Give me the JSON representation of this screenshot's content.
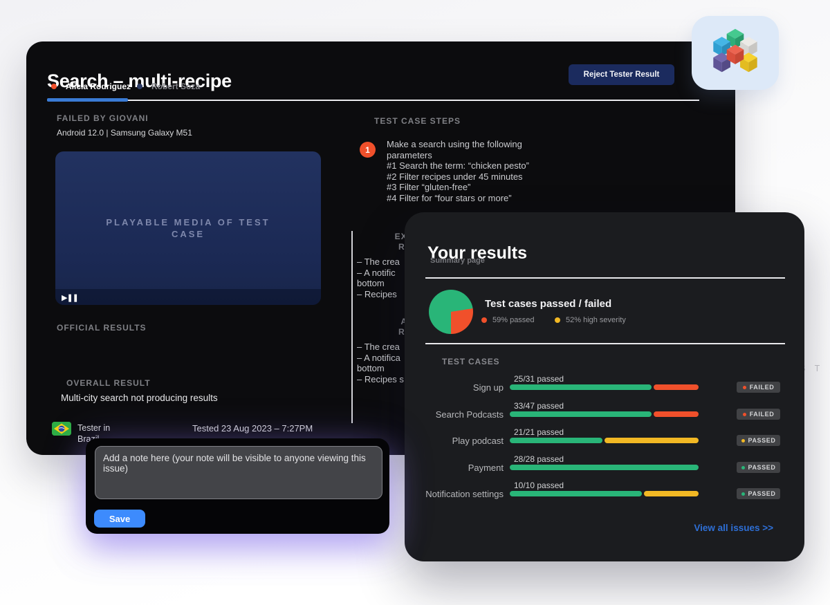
{
  "page": {
    "watermark": "S T"
  },
  "colors": {
    "accent_blue": "#3a7bd5",
    "save_blue": "#3d8bfd",
    "link_blue": "#2e6fd6",
    "green": "#29b578",
    "orange": "#f0502b",
    "yellow": "#f2b824",
    "tab_active_dot": "#f0502b",
    "tab_inactive_dot": "#2c3a63"
  },
  "main": {
    "title": "Search – multi-recipe",
    "reject_button": "Reject Tester Result",
    "tabs": [
      {
        "label": "Alicia Rodriguez",
        "active": true
      },
      {
        "label": "Robert Soza",
        "active": false
      }
    ],
    "failed_by_heading": "FAILED BY GIOVANI",
    "device": "Android 12.0 | Samsung Galaxy M51",
    "player": {
      "placeholder": "PLAYABLE MEDIA OF TEST CASE",
      "play_pause_glyph": "▶❚❚"
    },
    "official_results_heading": "OFFICIAL RESULTS",
    "overall_result_heading": "OVERALL RESULT",
    "overall_result_text": "Multi-city search not producing results",
    "tester_location": "Tester in Brazil",
    "tested_date": "Tested 23 Aug 2023 – 7:27PM",
    "steps": {
      "heading": "TEST CASE STEPS",
      "number": "1",
      "lines": [
        "Make a search using the following",
        "parameters",
        "#1 Search the term: “chicken pesto”",
        "#2 Filter recipes under 45 minutes",
        "#3 Filter “gluten-free”",
        "#4 Filter for “four stars or more”"
      ]
    },
    "expected": {
      "heading": "EXPECTED RESULTS",
      "lines": [
        "– The crea",
        "– A notific",
        "bottom",
        "– Recipes"
      ]
    },
    "actual": {
      "heading": "ACTUAL RESULTS",
      "lines": [
        "– The crea",
        "– A notifica",
        "bottom",
        "– Recipes s"
      ]
    }
  },
  "note_popup": {
    "placeholder": "Add a note here (your note will be visible to anyone viewing this issue)",
    "save_label": "Save"
  },
  "results_panel": {
    "title": "Your results",
    "subtitle": "Summary page",
    "chart_heading": "Test cases passed / failed",
    "legend": [
      {
        "label": "59% passed",
        "color": "#f0502b"
      },
      {
        "label": "52% high severity",
        "color": "#f2b824"
      }
    ],
    "test_cases_heading": "TEST CASES",
    "rows": [
      {
        "label": "Sign up",
        "passed": "25/31 passed",
        "green_pct": 75,
        "rest_pct": 25,
        "rest_color": "#f0502b",
        "status": "FAILED",
        "dot_color": "#f0502b"
      },
      {
        "label": "Search Podcasts",
        "passed": "33/47 passed",
        "green_pct": 75,
        "rest_pct": 25,
        "rest_color": "#f0502b",
        "status": "FAILED",
        "dot_color": "#f0502b"
      },
      {
        "label": "Play podcast",
        "passed": "21/21 passed",
        "green_pct": 49,
        "rest_pct": 51,
        "rest_color": "#f2b824",
        "status": "PASSED",
        "dot_color": "#f2b824"
      },
      {
        "label": "Payment",
        "passed": "28/28 passed",
        "green_pct": 100,
        "rest_pct": 0,
        "rest_color": null,
        "status": "PASSED",
        "dot_color": "#29b578"
      },
      {
        "label": "Notification settings",
        "passed": "10/10 passed",
        "green_pct": 70,
        "rest_pct": 30,
        "rest_color": "#f2b824",
        "status": "PASSED",
        "dot_color": "#29b578"
      }
    ],
    "view_all": "View all issues >>"
  },
  "chart_data": [
    {
      "type": "pie",
      "title": "Test cases passed / failed",
      "legend": [
        "59% passed",
        "52% high severity"
      ],
      "visual_slices": [
        {
          "color": "#29b578",
          "value": 22.5
        },
        {
          "color": "#f0502b",
          "value": 27.5
        },
        {
          "color": "#29b578",
          "value": 50
        }
      ]
    },
    {
      "type": "bar",
      "categories": [
        "Sign up",
        "Search Podcasts",
        "Play podcast",
        "Payment",
        "Notification settings"
      ],
      "series": [
        {
          "name": "passed ratio label",
          "values": [
            "25/31",
            "33/47",
            "21/21",
            "28/28",
            "10/10"
          ]
        },
        {
          "name": "green fraction %",
          "values": [
            75,
            75,
            49,
            100,
            70
          ]
        }
      ],
      "statuses": [
        "FAILED",
        "FAILED",
        "PASSED",
        "PASSED",
        "PASSED"
      ]
    }
  ]
}
